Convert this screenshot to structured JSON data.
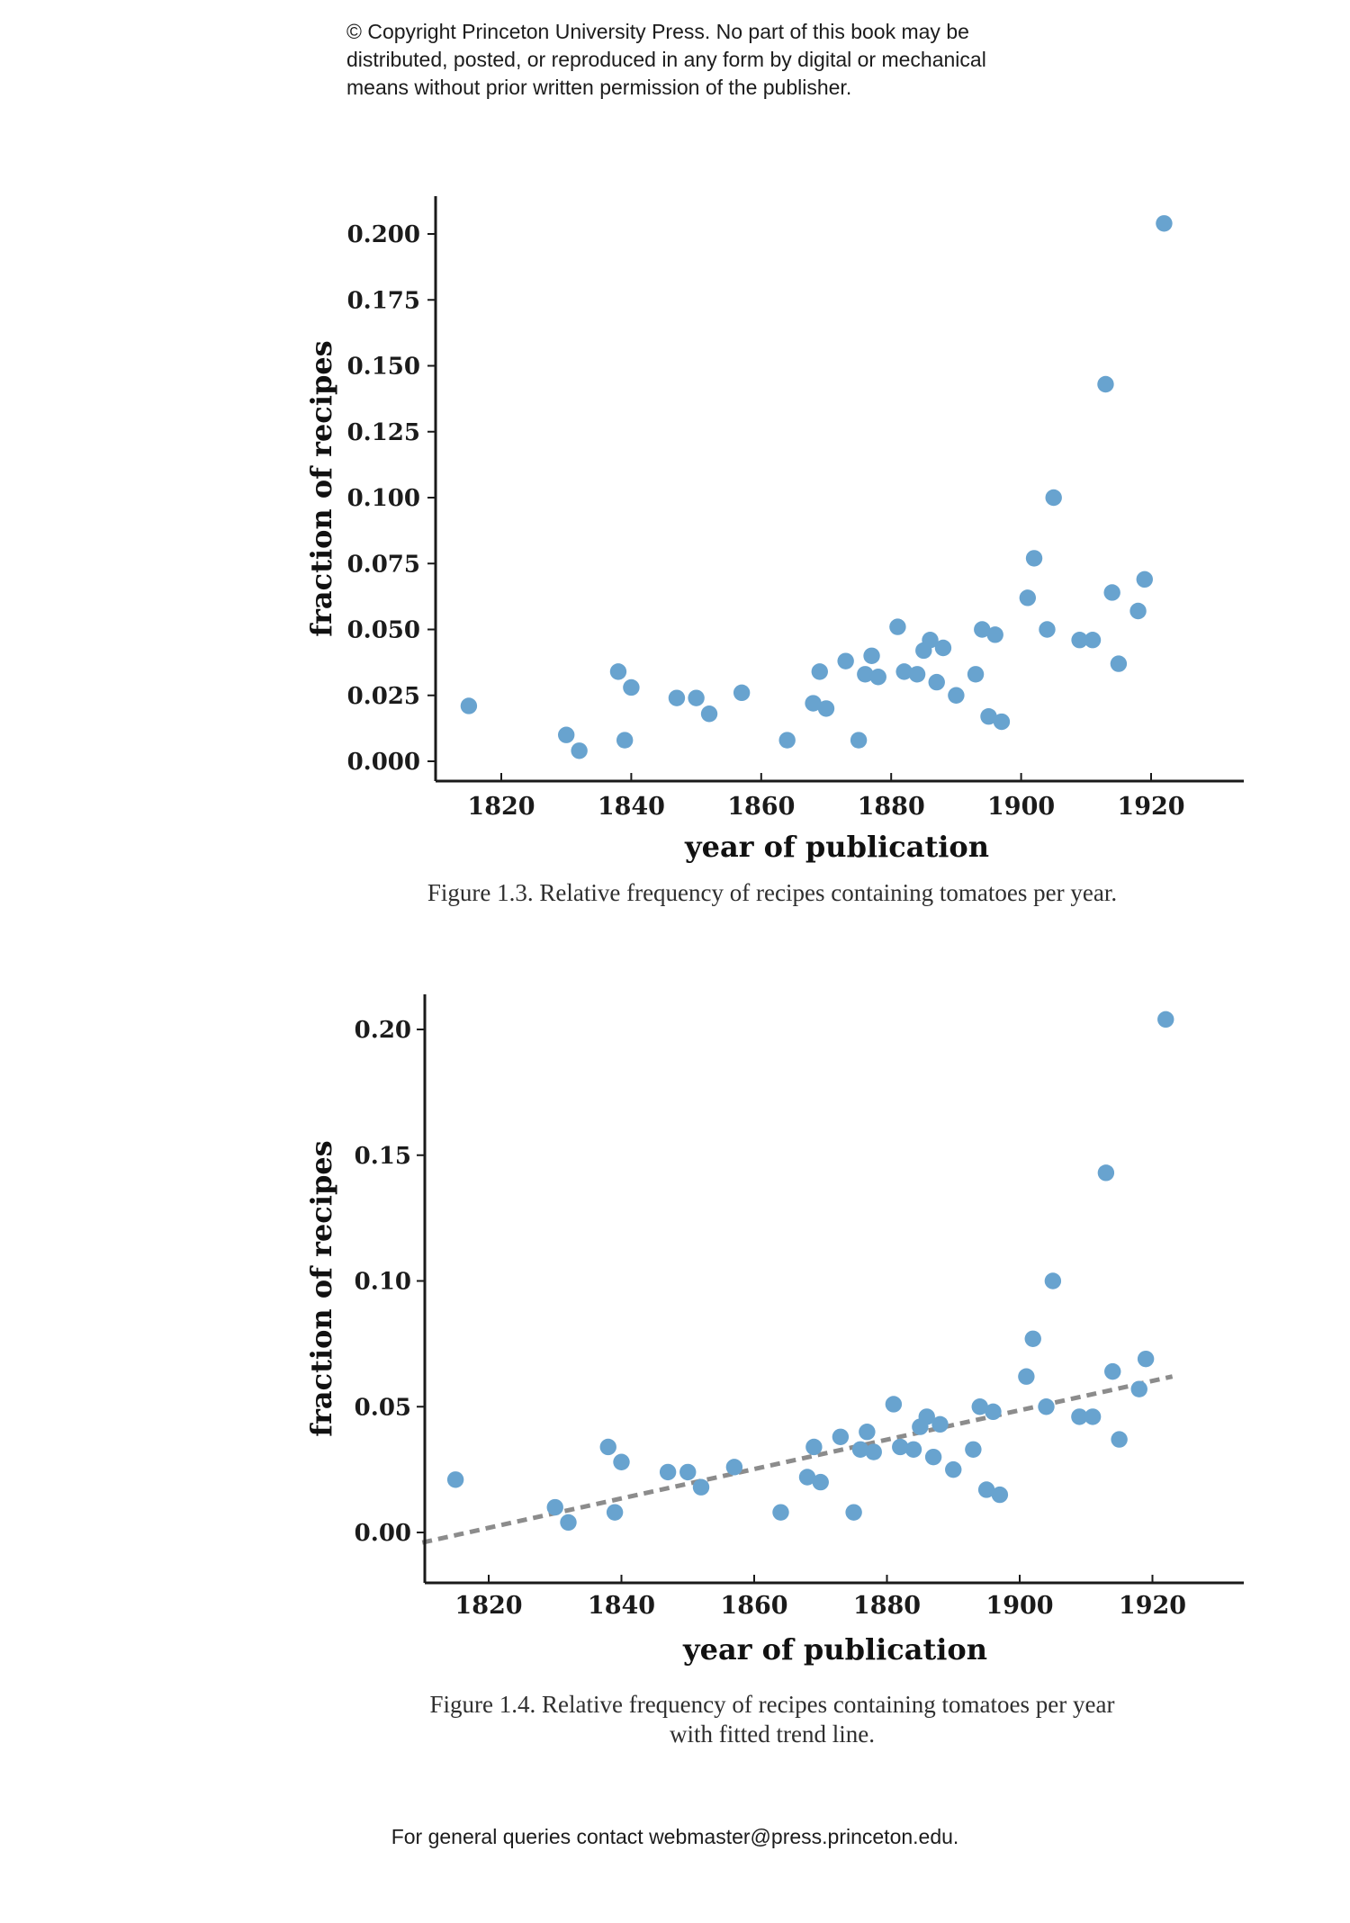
{
  "page": {
    "copyright_lines": [
      "© Copyright Princeton University Press. No part of this book may be",
      "distributed, posted, or reproduced in any form by digital or mechanical",
      "means without prior written permission of the publisher."
    ],
    "footer": "For general queries contact webmaster@press.princeton.edu."
  },
  "figure1": {
    "caption": "Figure 1.3. Relative frequency of recipes containing tomatoes per year.",
    "xlabel": "year of publication",
    "ylabel": "fraction of recipes"
  },
  "figure2": {
    "caption_line1": "Figure 1.4. Relative frequency of recipes containing tomatoes per year",
    "caption_line2": "with fitted trend line.",
    "xlabel": "year of publication",
    "ylabel": "fraction of recipes"
  },
  "colors": {
    "marker": "#68a3cf",
    "trend": "#8c8c8c",
    "axis": "#1a1a1a",
    "tick_text": "#1b1b1b"
  },
  "chart_data": [
    {
      "type": "scatter",
      "title": "Figure 1.3. Relative frequency of recipes containing tomatoes per year.",
      "xlabel": "year of publication",
      "ylabel": "fraction of recipes",
      "x_ticks": [
        1820,
        1840,
        1860,
        1880,
        1900,
        1920
      ],
      "y_ticks": [
        0.0,
        0.025,
        0.05,
        0.075,
        0.1,
        0.125,
        0.15,
        0.175,
        0.2
      ],
      "y_tick_labels": [
        "0.000",
        "0.025",
        "0.050",
        "0.075",
        "0.100",
        "0.125",
        "0.150",
        "0.175",
        "0.200"
      ],
      "xlim": [
        1810,
        1934
      ],
      "ylim": [
        -0.008,
        0.214
      ],
      "grid": false,
      "legend": "none",
      "marker_color": "#68a3cf",
      "points": [
        [
          1815,
          0.021
        ],
        [
          1830,
          0.01
        ],
        [
          1832,
          0.004
        ],
        [
          1838,
          0.034
        ],
        [
          1839,
          0.008
        ],
        [
          1840,
          0.028
        ],
        [
          1847,
          0.024
        ],
        [
          1850,
          0.024
        ],
        [
          1852,
          0.018
        ],
        [
          1857,
          0.026
        ],
        [
          1864,
          0.008
        ],
        [
          1868,
          0.022
        ],
        [
          1869,
          0.034
        ],
        [
          1870,
          0.02
        ],
        [
          1873,
          0.038
        ],
        [
          1875,
          0.008
        ],
        [
          1876,
          0.033
        ],
        [
          1877,
          0.04
        ],
        [
          1878,
          0.032
        ],
        [
          1881,
          0.051
        ],
        [
          1882,
          0.034
        ],
        [
          1884,
          0.033
        ],
        [
          1885,
          0.042
        ],
        [
          1886,
          0.046
        ],
        [
          1887,
          0.03
        ],
        [
          1888,
          0.043
        ],
        [
          1890,
          0.025
        ],
        [
          1893,
          0.033
        ],
        [
          1894,
          0.05
        ],
        [
          1895,
          0.017
        ],
        [
          1896,
          0.048
        ],
        [
          1897,
          0.015
        ],
        [
          1901,
          0.062
        ],
        [
          1902,
          0.077
        ],
        [
          1904,
          0.05
        ],
        [
          1905,
          0.1
        ],
        [
          1909,
          0.046
        ],
        [
          1911,
          0.046
        ],
        [
          1913,
          0.143
        ],
        [
          1914,
          0.064
        ],
        [
          1915,
          0.037
        ],
        [
          1918,
          0.057
        ],
        [
          1919,
          0.069
        ],
        [
          1922,
          0.204
        ]
      ]
    },
    {
      "type": "scatter",
      "title": "Figure 1.4. Relative frequency of recipes containing tomatoes per year with fitted trend line.",
      "xlabel": "year of publication",
      "ylabel": "fraction of recipes",
      "x_ticks": [
        1820,
        1840,
        1860,
        1880,
        1900,
        1920
      ],
      "y_ticks": [
        0.0,
        0.05,
        0.1,
        0.15,
        0.2
      ],
      "y_tick_labels": [
        "0.00",
        "0.05",
        "0.10",
        "0.15",
        "0.20"
      ],
      "xlim": [
        1810,
        1934
      ],
      "ylim": [
        -0.02,
        0.214
      ],
      "grid": false,
      "legend": "none",
      "marker_color": "#68a3cf",
      "trend_line": {
        "style": "dashed",
        "color": "#8c8c8c",
        "x": [
          1810,
          1923
        ],
        "y": [
          -0.004,
          0.062
        ]
      },
      "points": [
        [
          1815,
          0.021
        ],
        [
          1830,
          0.01
        ],
        [
          1832,
          0.004
        ],
        [
          1838,
          0.034
        ],
        [
          1839,
          0.008
        ],
        [
          1840,
          0.028
        ],
        [
          1847,
          0.024
        ],
        [
          1850,
          0.024
        ],
        [
          1852,
          0.018
        ],
        [
          1857,
          0.026
        ],
        [
          1864,
          0.008
        ],
        [
          1868,
          0.022
        ],
        [
          1869,
          0.034
        ],
        [
          1870,
          0.02
        ],
        [
          1873,
          0.038
        ],
        [
          1875,
          0.008
        ],
        [
          1876,
          0.033
        ],
        [
          1877,
          0.04
        ],
        [
          1878,
          0.032
        ],
        [
          1881,
          0.051
        ],
        [
          1882,
          0.034
        ],
        [
          1884,
          0.033
        ],
        [
          1885,
          0.042
        ],
        [
          1886,
          0.046
        ],
        [
          1887,
          0.03
        ],
        [
          1888,
          0.043
        ],
        [
          1890,
          0.025
        ],
        [
          1893,
          0.033
        ],
        [
          1894,
          0.05
        ],
        [
          1895,
          0.017
        ],
        [
          1896,
          0.048
        ],
        [
          1897,
          0.015
        ],
        [
          1901,
          0.062
        ],
        [
          1902,
          0.077
        ],
        [
          1904,
          0.05
        ],
        [
          1905,
          0.1
        ],
        [
          1909,
          0.046
        ],
        [
          1911,
          0.046
        ],
        [
          1913,
          0.143
        ],
        [
          1914,
          0.064
        ],
        [
          1915,
          0.037
        ],
        [
          1918,
          0.057
        ],
        [
          1919,
          0.069
        ],
        [
          1922,
          0.204
        ]
      ]
    }
  ]
}
